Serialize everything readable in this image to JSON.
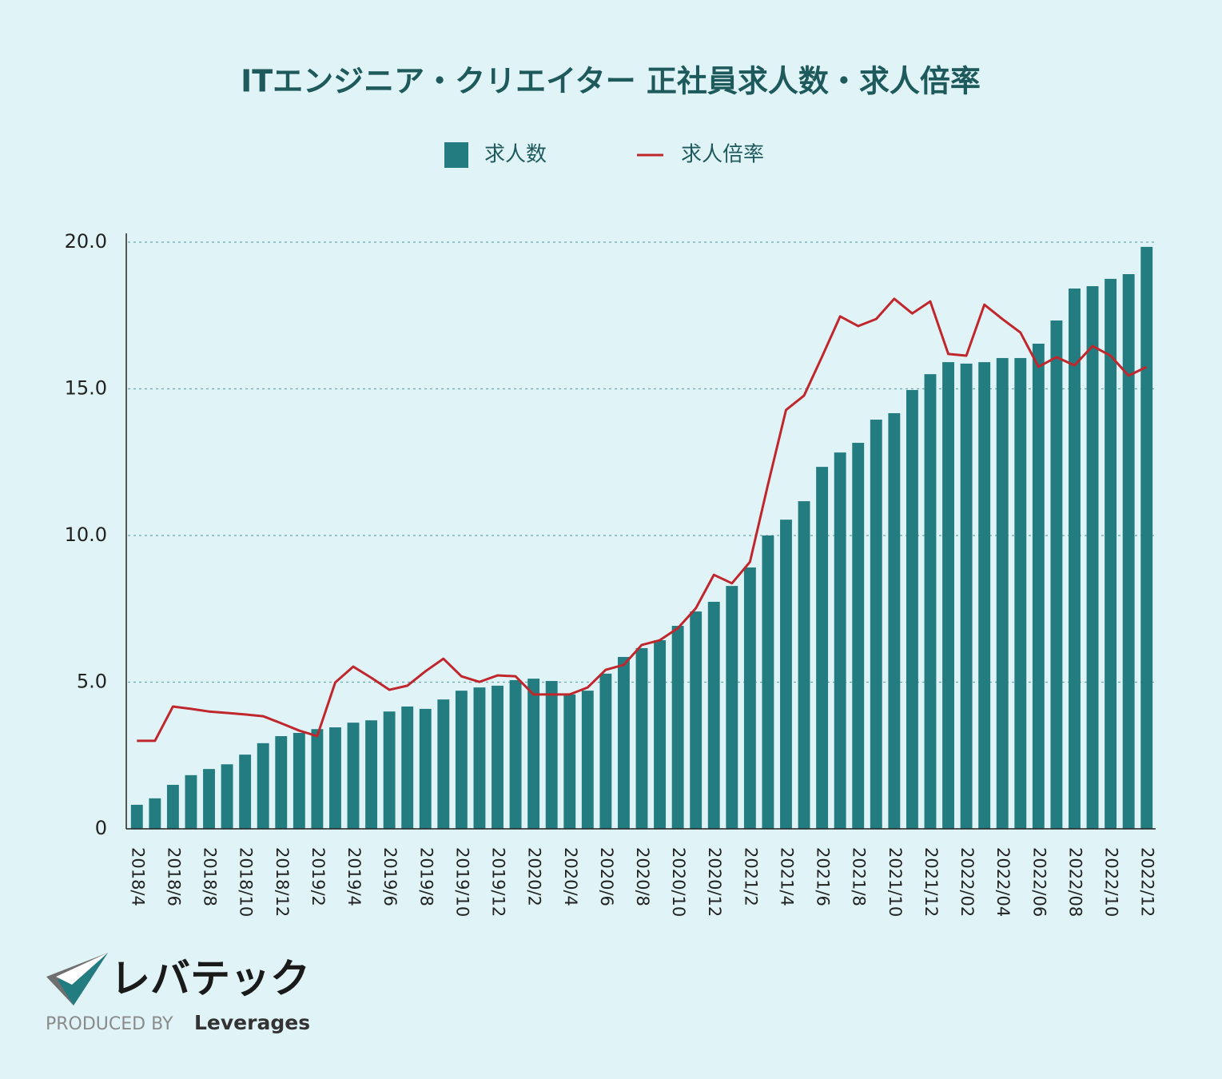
{
  "chart_data": {
    "type": "bar-line",
    "title": "ITエンジニア・クリエイター 正社員求人数・求人倍率",
    "categories": [
      "2018/4",
      null,
      "2018/6",
      null,
      "2018/8",
      null,
      "2018/10",
      null,
      "2018/12",
      null,
      "2019/2",
      null,
      "2019/4",
      null,
      "2019/6",
      null,
      "2019/8",
      null,
      "2019/10",
      null,
      "2019/12",
      null,
      "2020/2",
      null,
      "2020/4",
      null,
      "2020/6",
      null,
      "2020/8",
      null,
      "2020/10",
      null,
      "2020/12",
      null,
      "2021/2",
      null,
      "2021/4",
      null,
      "2021/6",
      null,
      "2021/8",
      null,
      "2021/10",
      null,
      "2021/12",
      null,
      "2022/02",
      null,
      "2022/04",
      null,
      "2022/06",
      null,
      "2022/08",
      null,
      "2022/10",
      null,
      "2022/12"
    ],
    "series": [
      {
        "name": "求人数",
        "type": "bar",
        "color": "#237d80",
        "values": [
          0.82,
          1.04,
          1.5,
          1.83,
          2.04,
          2.2,
          2.53,
          2.92,
          3.16,
          3.27,
          3.4,
          3.46,
          3.62,
          3.7,
          4.0,
          4.17,
          4.09,
          4.41,
          4.71,
          4.82,
          4.88,
          5.07,
          5.12,
          5.04,
          4.58,
          4.71,
          5.29,
          5.86,
          6.16,
          6.43,
          6.92,
          7.41,
          7.74,
          8.28,
          8.91,
          10.0,
          10.54,
          11.17,
          12.34,
          12.83,
          13.16,
          13.95,
          14.17,
          14.96,
          15.5,
          15.91,
          15.86,
          15.91,
          16.05,
          16.05,
          16.54,
          17.33,
          18.42,
          18.5,
          18.75,
          18.91,
          19.84
        ]
      },
      {
        "name": "求人倍率",
        "type": "line",
        "color": "#c0272d",
        "values": [
          3.0,
          3.0,
          4.17,
          4.09,
          4.0,
          3.95,
          3.9,
          3.84,
          3.6,
          3.35,
          3.16,
          4.99,
          5.53,
          5.15,
          4.74,
          4.88,
          5.37,
          5.8,
          5.2,
          5.01,
          5.23,
          5.2,
          4.58,
          4.58,
          4.58,
          4.82,
          5.42,
          5.59,
          6.27,
          6.43,
          6.84,
          7.52,
          8.66,
          8.37,
          9.1,
          11.74,
          14.28,
          14.77,
          16.1,
          17.47,
          17.14,
          17.38,
          18.07,
          17.57,
          17.98,
          16.19,
          16.13,
          17.87,
          17.38,
          16.92,
          15.75,
          16.08,
          15.8,
          16.46,
          16.13,
          15.45,
          15.75
        ]
      }
    ],
    "ylim": [
      0,
      20
    ],
    "yticks": [
      0,
      {
        "value": 5,
        "label": "5.0"
      },
      {
        "value": 10,
        "label": "10.0"
      },
      {
        "value": 15,
        "label": "15.0"
      },
      {
        "value": 20,
        "label": "20.0"
      }
    ],
    "grid": true
  },
  "logo": {
    "brand": "レバテック",
    "produced_by": "PRODUCED BY",
    "company": "Leverages"
  }
}
